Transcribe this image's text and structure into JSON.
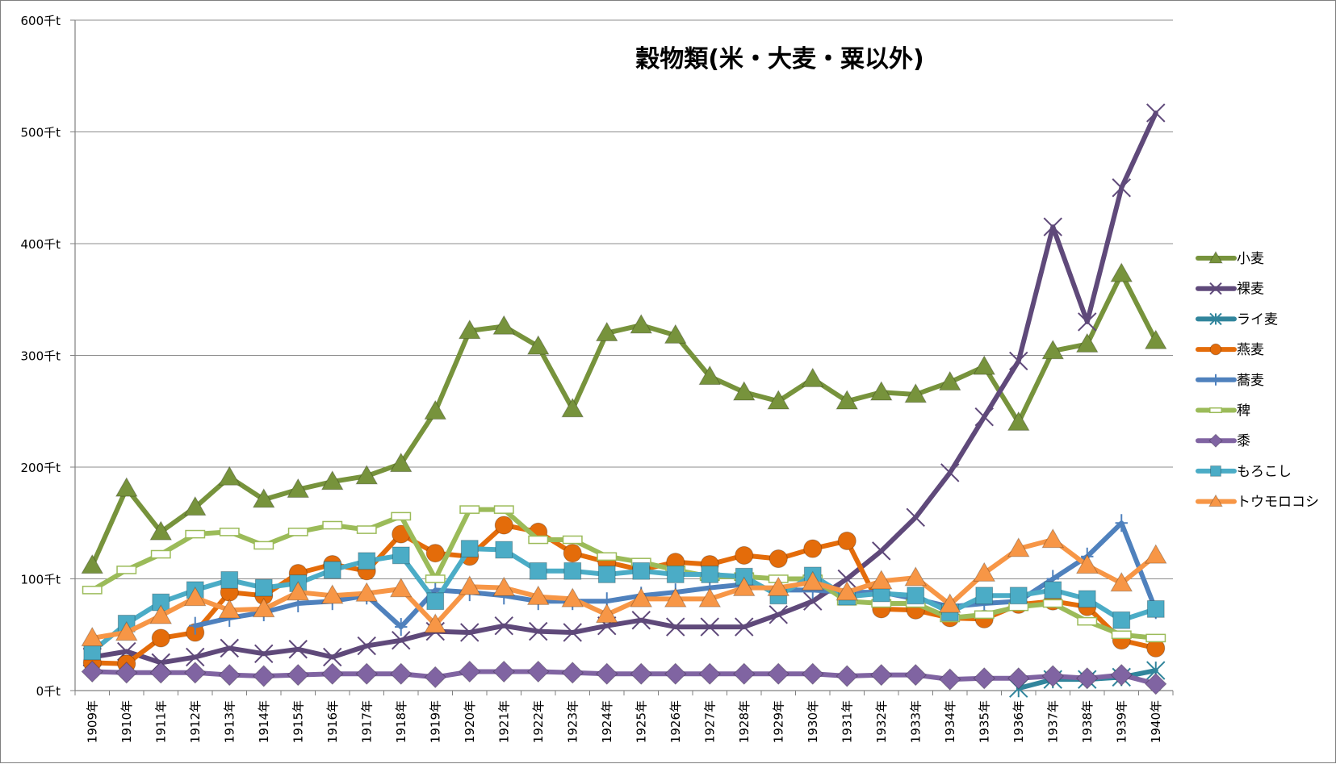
{
  "chart_data": {
    "type": "line",
    "title": "穀物類(米・大麦・粟以外)",
    "xlabel": "",
    "ylabel": "",
    "ylim": [
      0,
      600
    ],
    "yticks": [
      0,
      100,
      200,
      300,
      400,
      500,
      600
    ],
    "ytick_labels": [
      "0千t",
      "100千t",
      "200千t",
      "300千t",
      "400千t",
      "500千t",
      "600千t"
    ],
    "grid": true,
    "legend_position": "right",
    "categories": [
      "1909年",
      "1910年",
      "1911年",
      "1912年",
      "1913年",
      "1914年",
      "1915年",
      "1916年",
      "1917年",
      "1918年",
      "1919年",
      "1920年",
      "1921年",
      "1922年",
      "1923年",
      "1924年",
      "1925年",
      "1926年",
      "1927年",
      "1928年",
      "1929年",
      "1930年",
      "1931年",
      "1932年",
      "1933年",
      "1934年",
      "1935年",
      "1936年",
      "1937年",
      "1938年",
      "1939年",
      "1940年"
    ],
    "series": [
      {
        "name": "小麦",
        "color": "#77933c",
        "marker": "triangle",
        "values": [
          112,
          181,
          142,
          164,
          191,
          171,
          180,
          187,
          192,
          203,
          250,
          322,
          326,
          308,
          252,
          320,
          327,
          318,
          281,
          267,
          259,
          279,
          259,
          267,
          265,
          276,
          290,
          240,
          304,
          310,
          373,
          313
        ]
      },
      {
        "name": "裸麦",
        "color": "#5f497a",
        "marker": "x",
        "values": [
          30,
          35,
          25,
          30,
          38,
          33,
          37,
          30,
          40,
          45,
          53,
          52,
          58,
          53,
          52,
          58,
          63,
          57,
          57,
          57,
          68,
          80,
          100,
          125,
          155,
          195,
          245,
          295,
          415,
          330,
          450,
          517
        ]
      },
      {
        "name": "ライ麦",
        "color": "#31859c",
        "marker": "star",
        "values": [
          null,
          null,
          null,
          null,
          null,
          null,
          null,
          null,
          null,
          null,
          null,
          null,
          null,
          null,
          null,
          null,
          null,
          null,
          null,
          null,
          null,
          null,
          null,
          null,
          null,
          null,
          null,
          2,
          10,
          10,
          12,
          18
        ]
      },
      {
        "name": "燕麦",
        "color": "#e46c0a",
        "marker": "circle",
        "values": [
          25,
          24,
          47,
          52,
          88,
          85,
          105,
          113,
          107,
          140,
          123,
          120,
          148,
          142,
          123,
          115,
          108,
          115,
          113,
          121,
          118,
          127,
          134,
          73,
          72,
          65,
          64,
          77,
          80,
          75,
          45,
          38
        ]
      },
      {
        "name": "蕎麦",
        "color": "#4f81bd",
        "marker": "plus",
        "values": [
          null,
          null,
          null,
          58,
          65,
          70,
          78,
          80,
          85,
          57,
          90,
          88,
          85,
          80,
          80,
          80,
          85,
          88,
          92,
          95,
          90,
          90,
          88,
          88,
          82,
          75,
          78,
          80,
          100,
          120,
          150,
          72
        ]
      },
      {
        "name": "稗",
        "color": "#9bbb59",
        "marker": "dash",
        "values": [
          90,
          108,
          122,
          140,
          142,
          130,
          142,
          148,
          144,
          156,
          100,
          162,
          162,
          135,
          135,
          120,
          115,
          108,
          102,
          102,
          100,
          100,
          80,
          78,
          78,
          65,
          68,
          75,
          78,
          62,
          50,
          47
        ]
      },
      {
        "name": "黍",
        "color": "#8064a2",
        "marker": "diamond",
        "values": [
          17,
          16,
          16,
          16,
          14,
          13,
          14,
          15,
          15,
          15,
          12,
          17,
          17,
          17,
          16,
          15,
          15,
          15,
          15,
          15,
          15,
          15,
          13,
          14,
          14,
          10,
          11,
          11,
          13,
          11,
          14,
          6
        ]
      },
      {
        "name": "もろこし",
        "color": "#4bacc6",
        "marker": "square",
        "values": [
          35,
          60,
          79,
          90,
          99,
          92,
          96,
          108,
          116,
          121,
          80,
          127,
          126,
          107,
          107,
          104,
          107,
          104,
          104,
          102,
          85,
          103,
          84,
          87,
          85,
          70,
          85,
          85,
          90,
          82,
          63,
          73
        ]
      },
      {
        "name": "トウモロコシ",
        "color": "#f79646",
        "marker": "triangle",
        "values": [
          47,
          52,
          67,
          83,
          72,
          73,
          88,
          85,
          87,
          91,
          59,
          93,
          92,
          84,
          82,
          68,
          82,
          82,
          82,
          92,
          92,
          97,
          88,
          98,
          101,
          77,
          105,
          127,
          135,
          112,
          96,
          121
        ]
      }
    ]
  }
}
